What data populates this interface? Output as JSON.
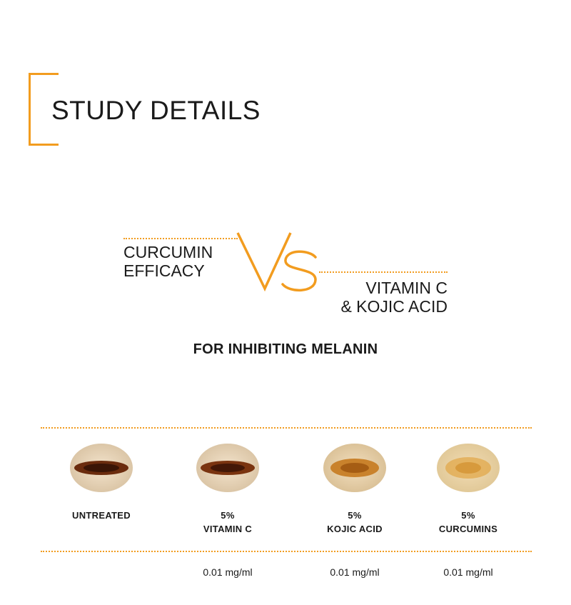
{
  "header": {
    "title": "STUDY DETAILS"
  },
  "comparison": {
    "left_line1": "CURCUMIN",
    "left_line2": "EFFICACY",
    "vs_text": "VS",
    "right_line1": "VITAMIN C",
    "right_line2": "& KOJIC ACID",
    "subtitle": "FOR INHIBITING MELANIN"
  },
  "samples": [
    {
      "label_line1": "UNTREATED",
      "label_line2": "",
      "dose": "",
      "icon": "untreated-cell-icon"
    },
    {
      "label_line1": "5%",
      "label_line2": "VITAMIN C",
      "dose": "0.01 mg/ml",
      "icon": "vitamin-c-cell-icon"
    },
    {
      "label_line1": "5%",
      "label_line2": "KOJIC ACID",
      "dose": "0.01 mg/ml",
      "icon": "kojic-acid-cell-icon"
    },
    {
      "label_line1": "5%",
      "label_line2": "CURCUMINS",
      "dose": "0.01 mg/ml",
      "icon": "curcumin-cell-icon"
    }
  ],
  "colors": {
    "accent": "#f29c1f",
    "text": "#1a1a1a"
  }
}
